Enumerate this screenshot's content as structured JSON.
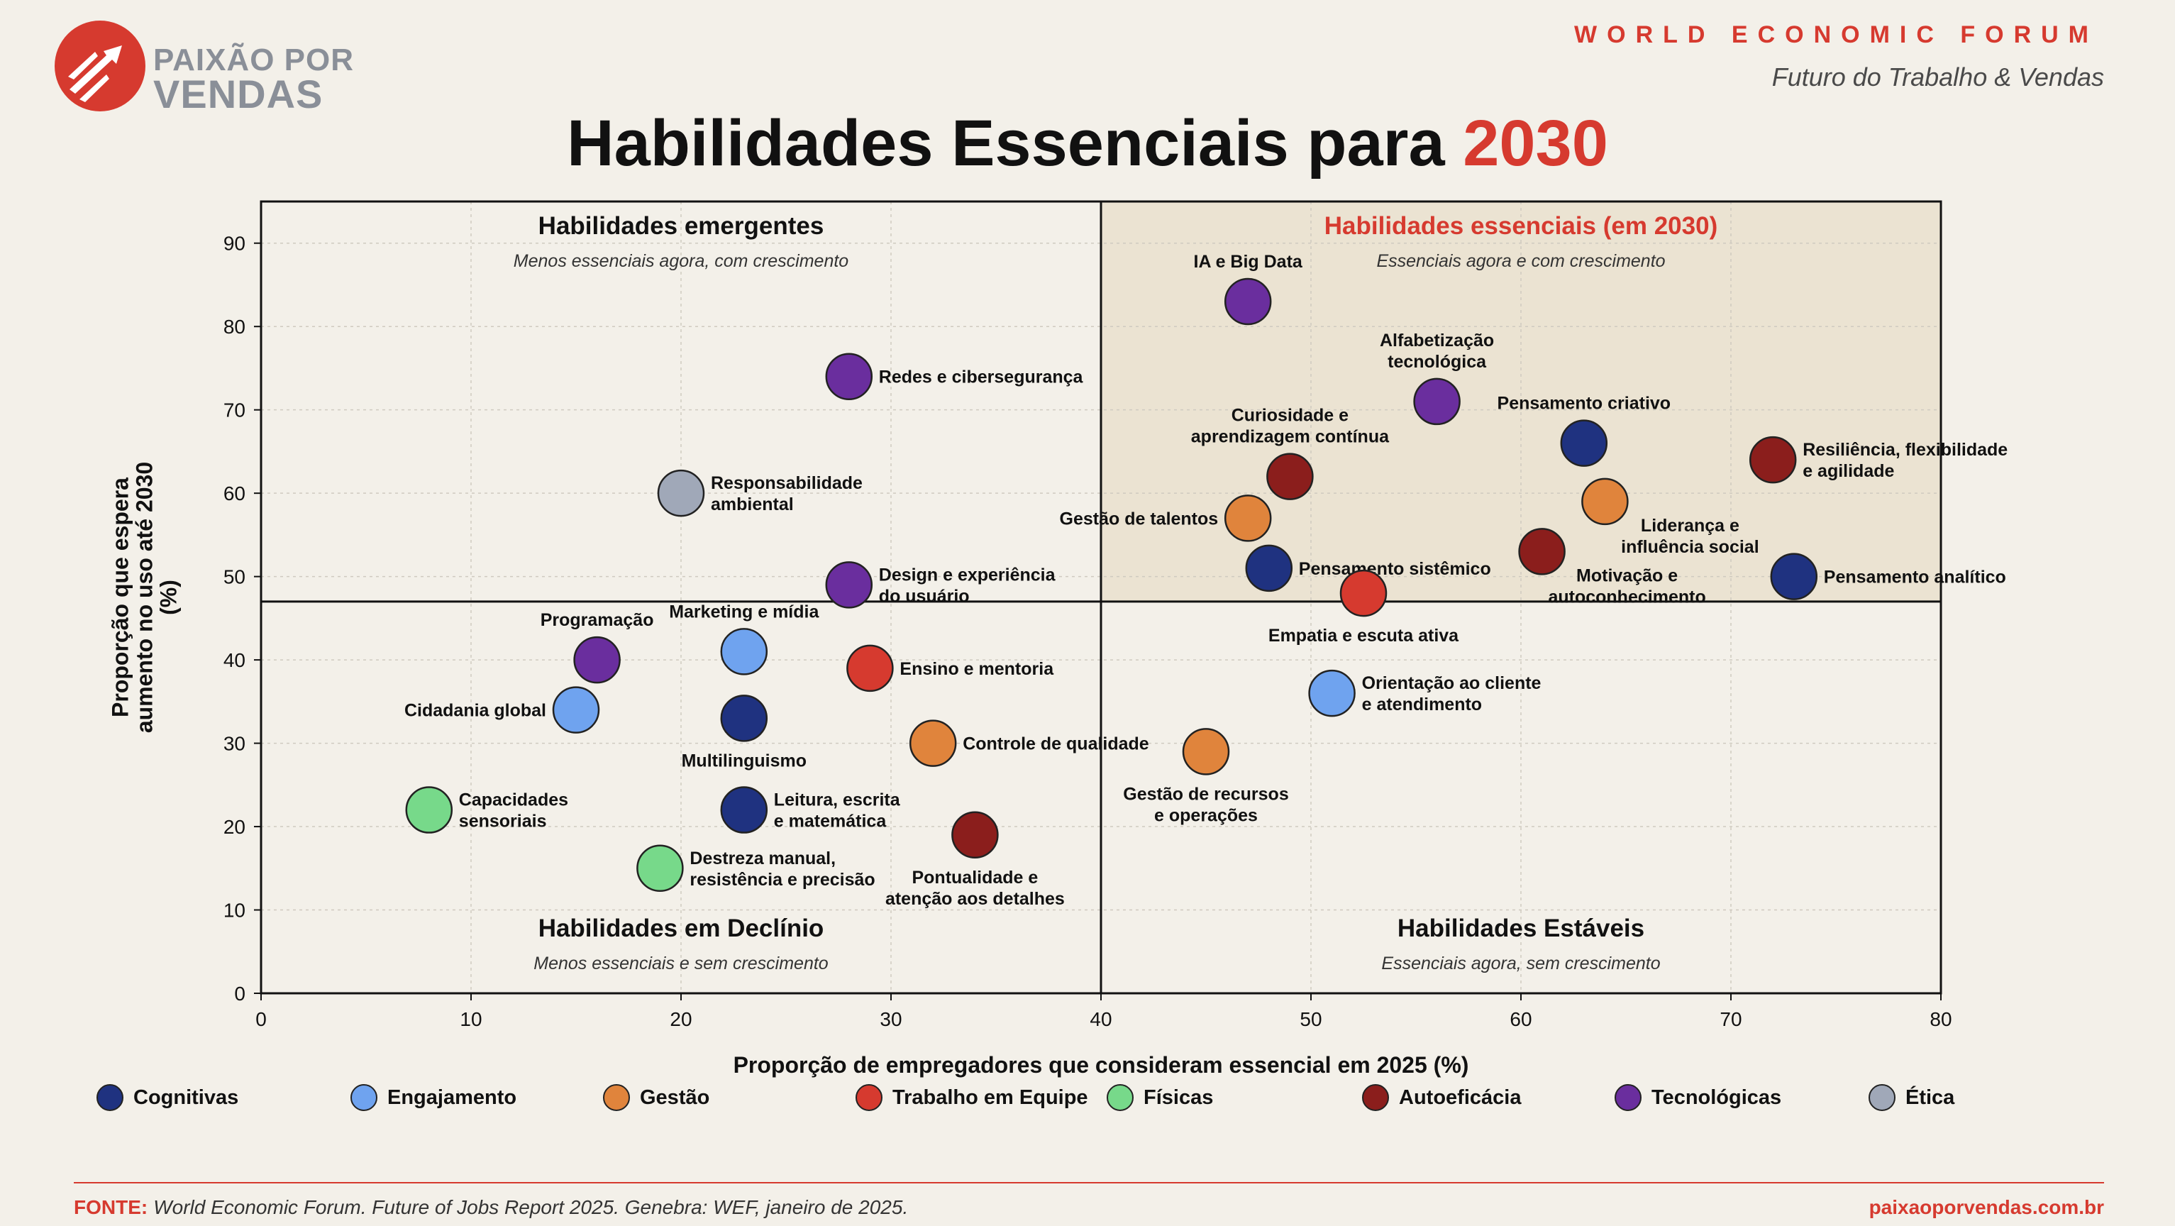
{
  "header": {
    "logo_line1": "PAIXÃO POR",
    "logo_line2": "VENDAS",
    "org": "WORLD ECONOMIC FORUM",
    "subtitle": "Futuro do Trabalho & Vendas"
  },
  "title": {
    "main": "Habilidades Essenciais para ",
    "accent": "2030"
  },
  "colors": {
    "Cognitivas": "#1f3280",
    "Engajamento": "#6fa3ef",
    "Gestão": "#e0843c",
    "Trabalho em Equipe": "#d63a2f",
    "Físicas": "#77d98a",
    "Autoeficácia": "#8b1e1c",
    "Tecnológicas": "#6a2e9e",
    "Ética": "#a0a8b8",
    "accent": "#d63a2f",
    "quadrant_highlight": "#ebe3d2"
  },
  "legend": [
    "Cognitivas",
    "Engajamento",
    "Gestão",
    "Trabalho em Equipe",
    "Físicas",
    "Autoeficácia",
    "Tecnológicas",
    "Ética"
  ],
  "chart_data": {
    "type": "scatter",
    "xlabel": "Proporção de empregadores que consideram essencial em 2025 (%)",
    "ylabel": [
      "Proporção que espera",
      "aumento no uso até 2030",
      "(%)"
    ],
    "xlim": [
      0,
      80
    ],
    "ylim": [
      0,
      95
    ],
    "xticks": [
      0,
      10,
      20,
      30,
      40,
      50,
      60,
      70,
      80
    ],
    "yticks": [
      0,
      10,
      20,
      30,
      40,
      50,
      60,
      70,
      80,
      90
    ],
    "grid": true,
    "divider_x": 40,
    "divider_y": 47,
    "quadrants": [
      {
        "title": "Habilidades emergentes",
        "subtitle": "Menos essenciais agora, com crescimento",
        "pos": "top-left",
        "accent": false
      },
      {
        "title": "Habilidades essenciais (em 2030)",
        "subtitle": "Essenciais agora e com crescimento",
        "pos": "top-right",
        "accent": true
      },
      {
        "title": "Habilidades em Declínio",
        "subtitle": "Menos essenciais e sem crescimento",
        "pos": "bottom-left",
        "accent": false
      },
      {
        "title": "Habilidades Estáveis",
        "subtitle": "Essenciais agora, sem crescimento",
        "pos": "bottom-right",
        "accent": false
      }
    ],
    "points": [
      {
        "label": [
          "IA e Big Data"
        ],
        "x": 47,
        "y": 83,
        "category": "Tecnológicas",
        "label_pos": "top"
      },
      {
        "label": [
          "Redes e cibersegurança"
        ],
        "x": 28,
        "y": 74,
        "category": "Tecnológicas",
        "label_pos": "right"
      },
      {
        "label": [
          "Alfabetização",
          "tecnológica"
        ],
        "x": 56,
        "y": 71,
        "category": "Tecnológicas",
        "label_pos": "top"
      },
      {
        "label": [
          "Pensamento criativo"
        ],
        "x": 63,
        "y": 66,
        "category": "Cognitivas",
        "label_pos": "top"
      },
      {
        "label": [
          "Resiliência, flexibilidade",
          "e agilidade"
        ],
        "x": 72,
        "y": 64,
        "category": "Autoeficácia",
        "label_pos": "right"
      },
      {
        "label": [
          "Curiosidade e",
          "aprendizagem contínua"
        ],
        "x": 49,
        "y": 62,
        "category": "Autoeficácia",
        "label_pos": "top"
      },
      {
        "label": [
          "Responsabilidade",
          "ambiental"
        ],
        "x": 20,
        "y": 60,
        "category": "Ética",
        "label_pos": "right"
      },
      {
        "label": [
          "Liderança e",
          "influência social"
        ],
        "x": 64,
        "y": 59,
        "category": "Gestão",
        "label_pos": "bottom-right"
      },
      {
        "label": [
          "Gestão de talentos"
        ],
        "x": 47,
        "y": 57,
        "category": "Gestão",
        "label_pos": "left"
      },
      {
        "label": [
          "Motivação e",
          "autoconhecimento"
        ],
        "x": 61,
        "y": 53,
        "category": "Autoeficácia",
        "label_pos": "bottom-right"
      },
      {
        "label": [
          "Pensamento sistêmico"
        ],
        "x": 48,
        "y": 51,
        "category": "Cognitivas",
        "label_pos": "right"
      },
      {
        "label": [
          "Pensamento analítico"
        ],
        "x": 73,
        "y": 50,
        "category": "Cognitivas",
        "label_pos": "right"
      },
      {
        "label": [
          "Design e experiência",
          "do usuário"
        ],
        "x": 28,
        "y": 49,
        "category": "Tecnológicas",
        "label_pos": "right"
      },
      {
        "label": [
          "Empatia e escuta ativa"
        ],
        "x": 52.5,
        "y": 48,
        "category": "Trabalho em Equipe",
        "label_pos": "bottom"
      },
      {
        "label": [
          "Marketing e mídia"
        ],
        "x": 23,
        "y": 41,
        "category": "Engajamento",
        "label_pos": "top"
      },
      {
        "label": [
          "Programação"
        ],
        "x": 16,
        "y": 40,
        "category": "Tecnológicas",
        "label_pos": "top"
      },
      {
        "label": [
          "Ensino e mentoria"
        ],
        "x": 29,
        "y": 39,
        "category": "Trabalho em Equipe",
        "label_pos": "right"
      },
      {
        "label": [
          "Orientação ao cliente",
          "e atendimento"
        ],
        "x": 51,
        "y": 36,
        "category": "Engajamento",
        "label_pos": "right"
      },
      {
        "label": [
          "Cidadania global"
        ],
        "x": 15,
        "y": 34,
        "category": "Engajamento",
        "label_pos": "left"
      },
      {
        "label": [
          "Multilinguismo"
        ],
        "x": 23,
        "y": 33,
        "category": "Cognitivas",
        "label_pos": "bottom"
      },
      {
        "label": [
          "Controle de qualidade"
        ],
        "x": 32,
        "y": 30,
        "category": "Gestão",
        "label_pos": "right"
      },
      {
        "label": [
          "Gestão de recursos",
          "e operações"
        ],
        "x": 45,
        "y": 29,
        "category": "Gestão",
        "label_pos": "bottom"
      },
      {
        "label": [
          "Capacidades",
          "sensoriais"
        ],
        "x": 8,
        "y": 22,
        "category": "Físicas",
        "label_pos": "right"
      },
      {
        "label": [
          "Leitura, escrita",
          "e matemática"
        ],
        "x": 23,
        "y": 22,
        "category": "Cognitivas",
        "label_pos": "right"
      },
      {
        "label": [
          "Pontualidade e",
          "atenção aos detalhes"
        ],
        "x": 34,
        "y": 19,
        "category": "Autoeficácia",
        "label_pos": "bottom"
      },
      {
        "label": [
          "Destreza manual,",
          "resistência e precisão"
        ],
        "x": 19,
        "y": 15,
        "category": "Físicas",
        "label_pos": "right"
      }
    ]
  },
  "footer": {
    "source_label": "FONTE:",
    "source_text": "World Economic Forum. Future of Jobs Report 2025. Genebra: WEF, janeiro de 2025.",
    "site": "paixaoporvendas.com.br"
  }
}
